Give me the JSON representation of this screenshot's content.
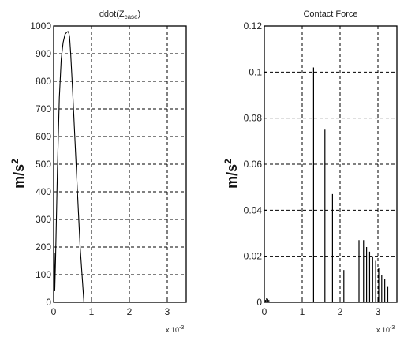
{
  "chart_data": [
    {
      "type": "line",
      "title": "ddot(Z",
      "title_sub": "case",
      "title_end": ")",
      "xlabel": "",
      "ylabel": "m/s",
      "ylabel_sup": "2",
      "xlim": [
        0,
        0.0035
      ],
      "ylim": [
        0,
        1000
      ],
      "xticks": [
        0,
        0.001,
        0.002,
        0.003
      ],
      "xticklabels": [
        "0",
        "1",
        "2",
        "3"
      ],
      "yticks": [
        0,
        100,
        200,
        300,
        400,
        500,
        600,
        700,
        800,
        900,
        1000
      ],
      "yticklabels": [
        "0",
        "100",
        "200",
        "300",
        "400",
        "500",
        "600",
        "700",
        "800",
        "900",
        "1000"
      ],
      "x_multiplier": "x 10",
      "x_multiplier_exp": "-3",
      "grid": true,
      "series": [
        {
          "x": [
            0,
            2e-05,
            3e-05,
            5e-05,
            0.0001,
            0.00015,
            0.0002,
            0.00025,
            0.0003,
            0.00035,
            0.00038,
            0.0004,
            0.00042,
            0.00045,
            0.0005,
            0.0006,
            0.0007,
            0.0008
          ],
          "y": [
            0,
            180,
            40,
            150,
            480,
            740,
            880,
            940,
            970,
            978,
            980,
            975,
            960,
            900,
            770,
            480,
            200,
            0
          ]
        }
      ]
    },
    {
      "type": "bar",
      "title": "Contact Force",
      "xlabel": "",
      "ylabel": "m/s",
      "ylabel_sup": "2",
      "xlim": [
        0,
        0.0035
      ],
      "ylim": [
        0,
        0.12
      ],
      "xticks": [
        0,
        0.001,
        0.002,
        0.003
      ],
      "xticklabels": [
        "0",
        "1",
        "2",
        "3"
      ],
      "yticks": [
        0,
        0.02,
        0.04,
        0.06,
        0.08,
        0.1,
        0.12
      ],
      "yticklabels": [
        "0",
        "0.02",
        "0.04",
        "0.06",
        "0.08",
        "0.1",
        "0.12"
      ],
      "x_multiplier": "x 10",
      "x_multiplier_exp": "-3",
      "grid": true,
      "series": [
        {
          "x": [
            3e-05,
            6e-05,
            9e-05,
            0.00012,
            0.0013,
            0.0016,
            0.0018,
            0.0021,
            0.0025,
            0.00262,
            0.0027,
            0.00278,
            0.00286,
            0.00294,
            0.00302,
            0.0031,
            0.00318,
            0.00326
          ],
          "y": [
            0.001,
            0.002,
            0.0015,
            0.001,
            0.102,
            0.075,
            0.047,
            0.014,
            0.027,
            0.027,
            0.024,
            0.022,
            0.02,
            0.018,
            0.015,
            0.012,
            0.01,
            0.007
          ]
        }
      ]
    }
  ]
}
